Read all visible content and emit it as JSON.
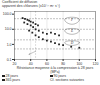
{
  "chart_data": {
    "type": "scatter",
    "title": "Coefficient de diffusion",
    "subtitle": "apparent des chlorures (x10⁻¹² m² s⁻¹)",
    "xlabel": "Résistance moyenne à la compression à 28 jours\n(MPa)",
    "xlim": [
      20,
      120
    ],
    "xticks": [
      20,
      40,
      60,
      80,
      100,
      120
    ],
    "ylim": [
      0.1,
      150
    ],
    "yticks": [
      0.1,
      {
        "value": 1.0,
        "label": "1.0"
      },
      {
        "value": 10.0,
        "label": "10.0"
      },
      {
        "value": 100.0,
        "label": "100.0"
      }
    ],
    "log": "y",
    "grid": "x",
    "legend": "bottom",
    "series": [
      {
        "name": "28 jours",
        "color": "#222222",
        "marker": "square",
        "x": [
          30,
          33,
          36,
          38,
          40,
          43,
          46,
          49
        ],
        "values": [
          55,
          48,
          42,
          38,
          32,
          28,
          22,
          18
        ]
      },
      {
        "name": "90 jours",
        "color": "#222222",
        "marker": "square",
        "x": [
          32,
          36,
          40,
          43,
          46,
          50,
          55,
          60,
          65,
          70,
          75
        ],
        "values": [
          28,
          22,
          18,
          14,
          10,
          8,
          6,
          5,
          6,
          5,
          4
        ]
      },
      {
        "name": "365 jours",
        "color": "#222222",
        "marker": "square",
        "x": [
          38,
          42,
          46,
          50,
          55,
          60,
          65,
          70,
          75,
          80,
          90,
          100
        ],
        "values": [
          8,
          6,
          4,
          3,
          2.2,
          1.8,
          1.5,
          1.2,
          1.0,
          0.9,
          0.7,
          0.6
        ]
      }
    ],
    "legend_note": "Cf. sections suivantes",
    "reference_lines": {
      "y": [
        50.0,
        10.0,
        2.0,
        0.5
      ],
      "x": [
        46
      ],
      "line_style": "dashed"
    },
    "ellipses": [
      {
        "label": "F",
        "cx": 91,
        "cy": 42,
        "rx": 9,
        "ry_log_factor": 1.6
      },
      {
        "label": "E",
        "cx": 91,
        "cy": 8,
        "rx": 9,
        "ry_log_factor": 1.5
      },
      {
        "label": "D",
        "cx": 91,
        "cy": 1.3,
        "rx": 9,
        "ry_log_factor": 1.4
      }
    ],
    "arrow": {
      "from": [
        46,
        0.35
      ],
      "to": [
        38,
        0.22
      ]
    }
  }
}
